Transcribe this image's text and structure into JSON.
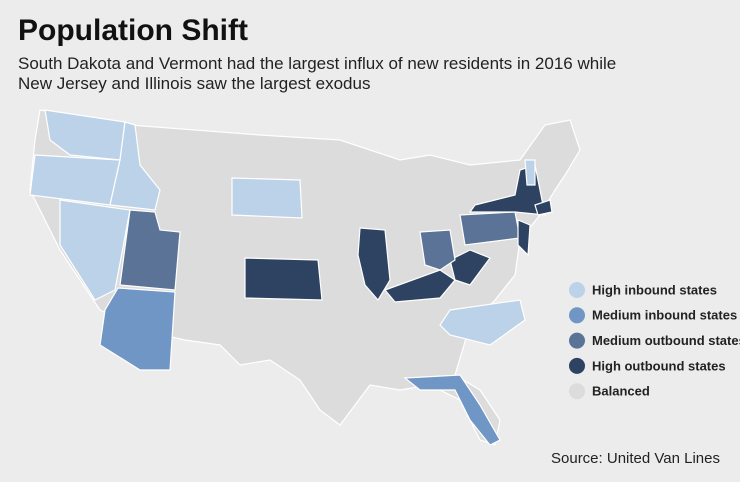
{
  "header": {
    "title": "Population Shift",
    "subtitle_lines": [
      "South Dakota and Vermont had the largest influx of new residents in 2016 while",
      "New Jersey and Illinois saw the largest exodus"
    ]
  },
  "legend": {
    "items": [
      {
        "label": "High inbound states",
        "color": "#bcd2e8"
      },
      {
        "label": "Medium inbound states",
        "color": "#7096c6"
      },
      {
        "label": "Medium outbound states",
        "color": "#5a7396"
      },
      {
        "label": "High outbound states",
        "color": "#2e4361"
      },
      {
        "label": "Balanced",
        "color": "#dcdcdc"
      }
    ]
  },
  "source": "Source: United Van Lines"
}
